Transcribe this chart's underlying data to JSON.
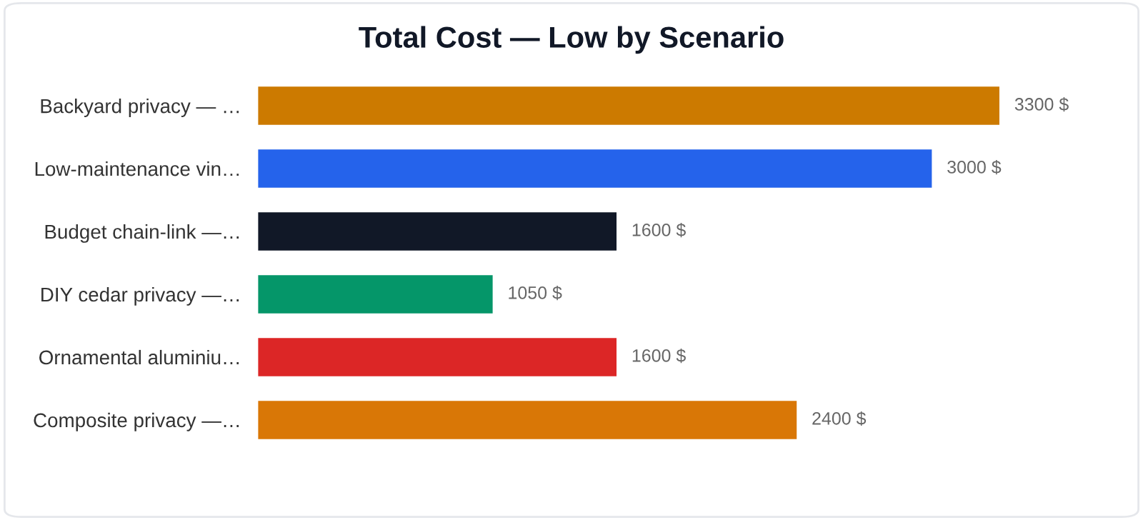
{
  "chart_data": {
    "type": "bar",
    "orientation": "horizontal",
    "title": "Total Cost — Low by Scenario",
    "categories": [
      "Backyard privacy — …",
      "Low-maintenance vin…",
      "Budget chain-link —…",
      "DIY cedar privacy —…",
      "Ornamental aluminiu…",
      "Composite privacy —…"
    ],
    "values": [
      3300,
      3000,
      1600,
      1050,
      1600,
      2400
    ],
    "colors": [
      "#cc7a00",
      "#2563eb",
      "#111827",
      "#059669",
      "#dc2626",
      "#d97706"
    ],
    "value_labels": [
      "3300 $",
      "3000 $",
      "1600 $",
      "1050 $",
      "1600 $",
      "2400 $"
    ],
    "grid": false,
    "legend": false
  }
}
